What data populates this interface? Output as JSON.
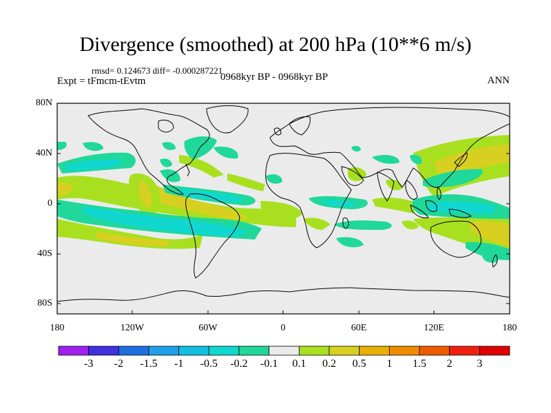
{
  "title": "Divergence (smoothed) at 200 hPa (10**6 m/s)",
  "stats": "rmsd= 0.124673  diff= -0.000287221",
  "experiment": "Expt = tFmcm-tEvtm",
  "period": "0968kyr BP - 0968kyr BP",
  "season": "ANN",
  "lat_labels": [
    "80N",
    "40N",
    "0",
    "40S",
    "80S"
  ],
  "lon_labels": [
    "180",
    "120W",
    "60W",
    "0",
    "60E",
    "120E",
    "180"
  ],
  "colorbar": {
    "labels": [
      "-3",
      "-2",
      "-1.5",
      "-1",
      "-0.5",
      "-0.2",
      "-0.1",
      "0.1",
      "0.2",
      "0.5",
      "1",
      "1.5",
      "2",
      "3"
    ],
    "colors": [
      "#a020f0",
      "#4030e0",
      "#1e6ee0",
      "#1ea0e8",
      "#10c0e0",
      "#10d8d0",
      "#20d89a",
      "#ebebeb",
      "#a8e020",
      "#d8d020",
      "#e8b000",
      "#f08c00",
      "#f05a00",
      "#f02010",
      "#e00000"
    ]
  },
  "map_colors": {
    "positive_weak": "#a8e020",
    "positive_mid": "#d8d020",
    "positive_strong": "#e8b000",
    "negative_weak": "#20d89a",
    "negative_mid": "#10d8d0",
    "background": "#ebebeb"
  }
}
